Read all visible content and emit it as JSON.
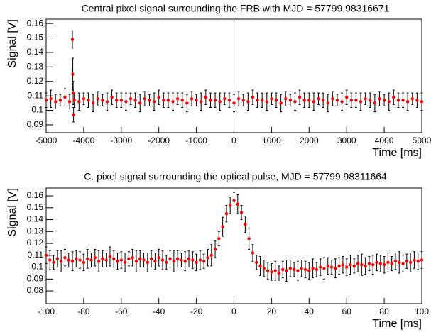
{
  "chart_data": [
    {
      "type": "errorbar",
      "title": "Central pixel signal surrounding the FRB with MJD = 57799.98316671",
      "xlabel": "Time [ms]",
      "ylabel": "Signal [V]",
      "x": [
        -5000,
        -4875,
        -4750,
        -4625,
        -4500,
        -4375,
        -4300,
        -4290,
        -4280,
        -4270,
        -4250,
        -4125,
        -4000,
        -3875,
        -3750,
        -3625,
        -3500,
        -3375,
        -3250,
        -3125,
        -3000,
        -2875,
        -2750,
        -2625,
        -2500,
        -2375,
        -2250,
        -2125,
        -2000,
        -1875,
        -1750,
        -1625,
        -1500,
        -1375,
        -1250,
        -1125,
        -1000,
        -875,
        -750,
        -625,
        -500,
        -375,
        -250,
        -125,
        0,
        125,
        250,
        375,
        500,
        625,
        750,
        875,
        1000,
        1125,
        1250,
        1375,
        1500,
        1625,
        1750,
        1875,
        2000,
        2125,
        2250,
        2375,
        2500,
        2625,
        2750,
        2875,
        3000,
        3125,
        3250,
        3375,
        3500,
        3625,
        3750,
        3875,
        4000,
        4125,
        4250,
        4375,
        4500,
        4625,
        4750,
        4875,
        5000
      ],
      "values": [
        0.107,
        0.108,
        0.106,
        0.107,
        0.109,
        0.106,
        0.149,
        0.125,
        0.112,
        0.097,
        0.107,
        0.106,
        0.108,
        0.107,
        0.105,
        0.108,
        0.107,
        0.106,
        0.109,
        0.107,
        0.107,
        0.106,
        0.108,
        0.107,
        0.105,
        0.108,
        0.107,
        0.106,
        0.109,
        0.107,
        0.107,
        0.106,
        0.108,
        0.107,
        0.105,
        0.108,
        0.107,
        0.106,
        0.109,
        0.107,
        0.107,
        0.106,
        0.108,
        0.107,
        0.105,
        0.108,
        0.107,
        0.106,
        0.109,
        0.107,
        0.107,
        0.106,
        0.108,
        0.107,
        0.105,
        0.108,
        0.107,
        0.106,
        0.109,
        0.107,
        0.107,
        0.106,
        0.108,
        0.107,
        0.105,
        0.108,
        0.107,
        0.106,
        0.109,
        0.107,
        0.107,
        0.106,
        0.108,
        0.107,
        0.105,
        0.108,
        0.107,
        0.106,
        0.109,
        0.107,
        0.107,
        0.106,
        0.108,
        0.107,
        0.106
      ],
      "errors": [
        0.005,
        0.006,
        0.005,
        0.004,
        0.006,
        0.005,
        0.006,
        0.011,
        0.008,
        0.005,
        0.005,
        0.006,
        0.004,
        0.005,
        0.006,
        0.005,
        0.004,
        0.006,
        0.005,
        0.005,
        0.005,
        0.006,
        0.004,
        0.005,
        0.006,
        0.005,
        0.004,
        0.006,
        0.005,
        0.005,
        0.005,
        0.006,
        0.004,
        0.005,
        0.006,
        0.005,
        0.004,
        0.006,
        0.005,
        0.005,
        0.005,
        0.006,
        0.004,
        0.005,
        0.006,
        0.005,
        0.004,
        0.006,
        0.005,
        0.005,
        0.005,
        0.006,
        0.004,
        0.005,
        0.006,
        0.005,
        0.004,
        0.006,
        0.005,
        0.005,
        0.005,
        0.006,
        0.004,
        0.005,
        0.006,
        0.005,
        0.004,
        0.006,
        0.005,
        0.005,
        0.005,
        0.006,
        0.004,
        0.005,
        0.006,
        0.005,
        0.004,
        0.006,
        0.005,
        0.005,
        0.005,
        0.006,
        0.004,
        0.005,
        0.006
      ],
      "color": "#ff0000",
      "error_color": "#000000",
      "vline": 0,
      "xlim": [
        -5000,
        5000
      ],
      "xticks": [
        -5000,
        -4000,
        -3000,
        -2000,
        -1000,
        0,
        1000,
        2000,
        3000,
        4000,
        5000
      ],
      "ylim": [
        0.0846,
        0.163
      ],
      "yticks": [
        0.09,
        0.1,
        0.11,
        0.12,
        0.13,
        0.14,
        0.15,
        0.16
      ]
    },
    {
      "type": "errorbar",
      "title": "C. pixel signal surrounding the optical pulse, MJD = 57799.98311664",
      "xlabel": "Time [ms]",
      "ylabel": "Signal [V]",
      "x": [
        -100,
        -98,
        -96,
        -94,
        -92,
        -90,
        -88,
        -86,
        -84,
        -82,
        -80,
        -78,
        -76,
        -74,
        -72,
        -70,
        -68,
        -66,
        -64,
        -62,
        -60,
        -58,
        -56,
        -54,
        -52,
        -50,
        -48,
        -46,
        -44,
        -42,
        -40,
        -38,
        -36,
        -34,
        -32,
        -30,
        -28,
        -26,
        -24,
        -22,
        -20,
        -18,
        -16,
        -14,
        -12,
        -10,
        -8,
        -6,
        -4,
        -2,
        0,
        2,
        4,
        6,
        8,
        10,
        12,
        14,
        16,
        18,
        20,
        22,
        24,
        26,
        28,
        30,
        32,
        34,
        36,
        38,
        40,
        42,
        44,
        46,
        48,
        50,
        52,
        54,
        56,
        58,
        60,
        62,
        64,
        66,
        68,
        70,
        72,
        74,
        76,
        78,
        80,
        82,
        84,
        86,
        88,
        90,
        92,
        94,
        96,
        98,
        100
      ],
      "values": [
        0.11,
        0.106,
        0.104,
        0.107,
        0.105,
        0.108,
        0.106,
        0.105,
        0.107,
        0.106,
        0.104,
        0.107,
        0.106,
        0.108,
        0.105,
        0.107,
        0.106,
        0.109,
        0.107,
        0.105,
        0.106,
        0.104,
        0.107,
        0.108,
        0.105,
        0.107,
        0.106,
        0.104,
        0.107,
        0.105,
        0.108,
        0.106,
        0.104,
        0.107,
        0.105,
        0.107,
        0.106,
        0.105,
        0.107,
        0.106,
        0.104,
        0.106,
        0.105,
        0.108,
        0.11,
        0.115,
        0.124,
        0.134,
        0.145,
        0.152,
        0.156,
        0.153,
        0.146,
        0.136,
        0.124,
        0.112,
        0.104,
        0.101,
        0.099,
        0.097,
        0.096,
        0.097,
        0.095,
        0.098,
        0.097,
        0.099,
        0.098,
        0.097,
        0.099,
        0.098,
        0.097,
        0.099,
        0.098,
        0.1,
        0.099,
        0.101,
        0.1,
        0.099,
        0.101,
        0.102,
        0.1,
        0.102,
        0.101,
        0.103,
        0.102,
        0.101,
        0.103,
        0.102,
        0.104,
        0.103,
        0.102,
        0.104,
        0.103,
        0.105,
        0.104,
        0.103,
        0.105,
        0.104,
        0.106,
        0.105,
        0.106
      ],
      "errors": [
        0.007,
        0.008,
        0.006,
        0.007,
        0.009,
        0.007,
        0.006,
        0.008,
        0.007,
        0.007,
        0.007,
        0.008,
        0.006,
        0.007,
        0.009,
        0.007,
        0.006,
        0.008,
        0.007,
        0.007,
        0.007,
        0.008,
        0.006,
        0.007,
        0.009,
        0.007,
        0.006,
        0.008,
        0.007,
        0.007,
        0.007,
        0.008,
        0.006,
        0.007,
        0.009,
        0.007,
        0.006,
        0.008,
        0.007,
        0.007,
        0.007,
        0.008,
        0.006,
        0.007,
        0.009,
        0.007,
        0.006,
        0.008,
        0.007,
        0.007,
        0.007,
        0.008,
        0.006,
        0.007,
        0.009,
        0.007,
        0.006,
        0.008,
        0.007,
        0.007,
        0.007,
        0.008,
        0.006,
        0.007,
        0.009,
        0.007,
        0.006,
        0.008,
        0.007,
        0.007,
        0.007,
        0.008,
        0.006,
        0.007,
        0.009,
        0.007,
        0.006,
        0.008,
        0.007,
        0.007,
        0.007,
        0.008,
        0.006,
        0.007,
        0.009,
        0.007,
        0.006,
        0.008,
        0.007,
        0.007,
        0.007,
        0.008,
        0.006,
        0.007,
        0.009,
        0.007,
        0.006,
        0.008,
        0.007,
        0.007,
        0.007
      ],
      "color": "#ff0000",
      "error_color": "#000000",
      "xlim": [
        -100,
        100
      ],
      "xticks": [
        -100,
        -80,
        -60,
        -40,
        -20,
        0,
        20,
        40,
        60,
        80,
        100
      ],
      "ylim": [
        0.0693,
        0.1666
      ],
      "yticks": [
        0.08,
        0.09,
        0.1,
        0.11,
        0.12,
        0.13,
        0.14,
        0.15,
        0.16
      ]
    }
  ]
}
